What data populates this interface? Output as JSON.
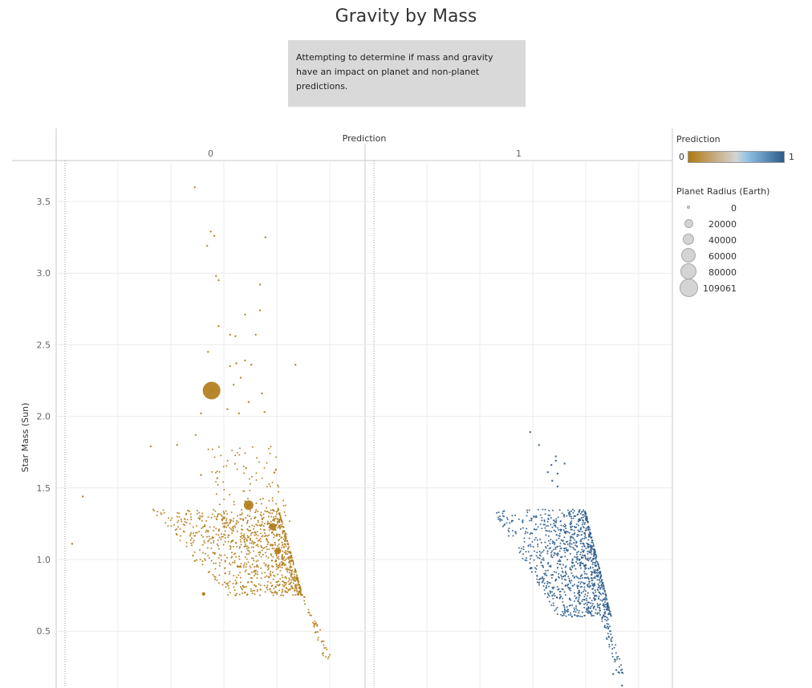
{
  "page": {
    "title": "Gravity by Mass",
    "description": "Attempting to determine if mass and gravity have an impact on planet and non-planet predictions."
  },
  "legend": {
    "color_title": "Prediction",
    "color_min_label": "0",
    "color_max_label": "1",
    "color_min": "#b07a14",
    "color_mid": "#d4d4d4",
    "color_max": "#2b5b8a",
    "size_title": "Planet Radius (Earth)",
    "size_items": [
      "0",
      "20000",
      "40000",
      "60000",
      "80000",
      "109061"
    ]
  },
  "chart_data": {
    "type": "scatter",
    "title": "",
    "column_header": "Prediction",
    "panels": [
      "0",
      "1"
    ],
    "ylabel": "Star Mass (Sun)",
    "xlabel": "",
    "ylim": [
      0.2,
      3.75
    ],
    "yticks": [
      0.5,
      1.0,
      1.5,
      2.0,
      2.5,
      3.0,
      3.5
    ],
    "ytick_labels": [
      "0.5",
      "1.0",
      "1.5",
      "2.0",
      "2.5",
      "3.0",
      "3.5"
    ],
    "grid": true,
    "series": [
      {
        "prediction": "0",
        "color": "#b07a14",
        "points": [
          [
            0.09,
            1.11
          ],
          [
            0.21,
            1.44
          ],
          [
            0.98,
            1.79
          ],
          [
            1.28,
            1.8
          ],
          [
            1.48,
            3.6
          ],
          [
            1.66,
            3.29
          ],
          [
            1.62,
            3.19
          ],
          [
            1.7,
            3.26
          ],
          [
            2.28,
            3.25
          ],
          [
            1.72,
            2.98
          ],
          [
            1.75,
            2.95
          ],
          [
            2.22,
            2.92
          ],
          [
            1.75,
            2.63
          ],
          [
            2.05,
            2.71
          ],
          [
            2.22,
            2.74
          ],
          [
            1.88,
            2.57
          ],
          [
            1.94,
            2.56
          ],
          [
            2.17,
            2.57
          ],
          [
            1.63,
            2.45
          ],
          [
            1.95,
            2.37
          ],
          [
            2.05,
            2.39
          ],
          [
            2.12,
            2.36
          ],
          [
            1.88,
            2.35
          ],
          [
            2.62,
            2.36
          ],
          [
            2.0,
            2.27
          ],
          [
            1.92,
            2.22
          ],
          [
            2.24,
            2.16
          ],
          [
            2.09,
            2.1
          ],
          [
            1.55,
            2.02
          ],
          [
            1.85,
            2.05
          ],
          [
            1.98,
            2.02
          ],
          [
            2.27,
            2.03
          ],
          [
            1.49,
            1.87
          ],
          [
            1.55,
            1.59
          ],
          [
            1.48,
            0.99
          ],
          [
            1.63,
            1.2
          ],
          [
            1.58,
            0.76
          ],
          [
            1.82,
            0.94
          ],
          [
            1.67,
            2.18
          ],
          [
            2.09,
            1.38
          ],
          [
            2.36,
            1.23
          ],
          [
            2.42,
            1.06
          ]
        ],
        "radii": [
          [
            1.67,
            2.18,
            109061
          ],
          [
            2.09,
            1.38,
            60000
          ],
          [
            2.36,
            1.23,
            40000
          ],
          [
            2.42,
            1.06,
            30000
          ],
          [
            1.58,
            0.76,
            8000
          ]
        ]
      },
      {
        "prediction": "1",
        "color": "#2b5b8a",
        "points": [
          [
            1.78,
            1.89
          ],
          [
            1.88,
            1.8
          ],
          [
            2.07,
            1.72
          ],
          [
            2.17,
            1.67
          ],
          [
            2.07,
            1.69
          ],
          [
            2.02,
            1.66
          ],
          [
            1.98,
            1.61
          ],
          [
            2.09,
            1.6
          ],
          [
            2.03,
            1.55
          ],
          [
            2.09,
            1.51
          ],
          [
            2.72,
            0.2
          ],
          [
            2.82,
            0.12
          ]
        ],
        "radii": []
      }
    ]
  }
}
